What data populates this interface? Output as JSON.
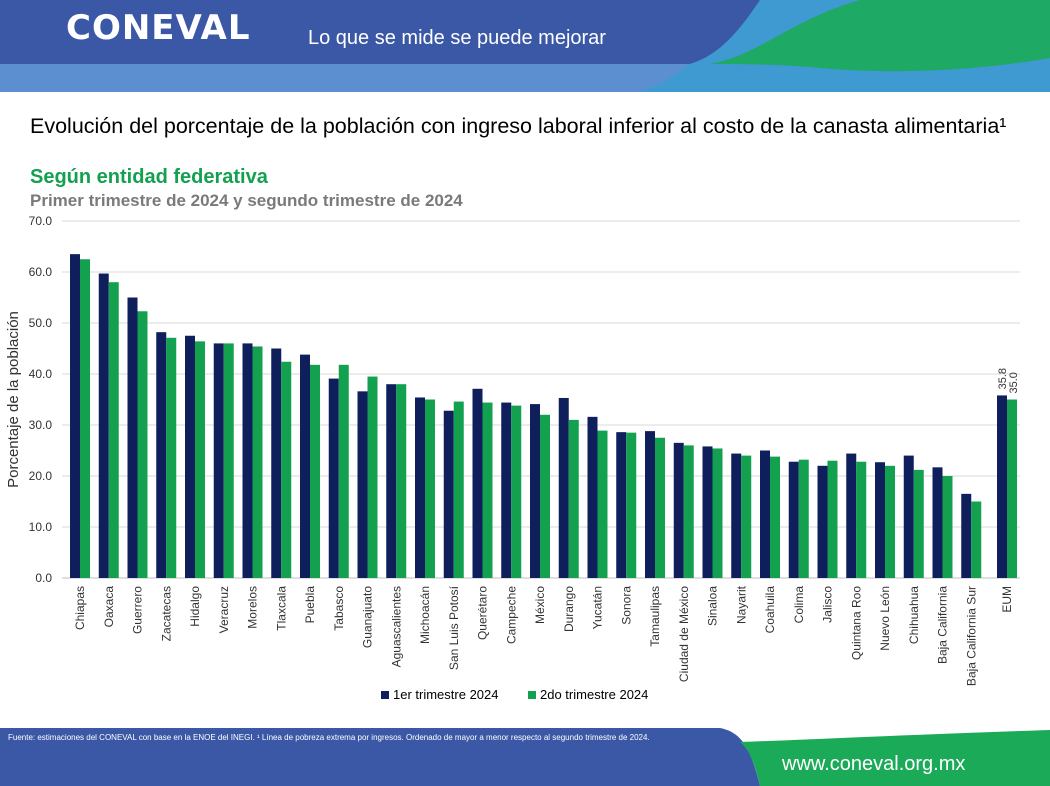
{
  "header": {
    "logo_text": "CONEVAL",
    "slogan": "Lo que se mide se puede mejorar"
  },
  "chart_data": {
    "type": "bar",
    "title": "Evolución del porcentaje de la población con ingreso laboral inferior al costo de la canasta alimentaria¹",
    "subtitle": "Según entidad federativa",
    "subsubtitle": "Primer trimestre de 2024 y segundo trimestre de 2024",
    "ylabel": "Porcentaje de la población",
    "ylim": [
      0,
      70
    ],
    "yticks": [
      "0.0",
      "10.0",
      "20.0",
      "30.0",
      "40.0",
      "50.0",
      "60.0",
      "70.0"
    ],
    "grid": true,
    "legend_position": "bottom",
    "categories": [
      "Chiapas",
      "Oaxaca",
      "Guerrero",
      "Zacatecas",
      "Hidalgo",
      "Veracruz",
      "Morelos",
      "Tlaxcala",
      "Puebla",
      "Tabasco",
      "Guanajuato",
      "Aguascalientes",
      "Michoacán",
      "San Luis Potosí",
      "Querétaro",
      "Campeche",
      "México",
      "Durango",
      "Yucatán",
      "Sonora",
      "Tamaulipas",
      "Ciudad de México",
      "Sinaloa",
      "Nayarit",
      "Coahuila",
      "Colima",
      "Jalisco",
      "Quintana Roo",
      "Nuevo León",
      "Chihuahua",
      "Baja California",
      "Baja California Sur",
      "EUM"
    ],
    "series": [
      {
        "name": "1er trimestre 2024",
        "color": "#0f1f5c",
        "values": [
          63.5,
          59.7,
          55.0,
          48.2,
          47.5,
          46.0,
          46.0,
          45.0,
          43.8,
          39.1,
          36.6,
          38.0,
          35.4,
          32.8,
          37.1,
          34.4,
          34.1,
          35.3,
          31.6,
          28.6,
          28.8,
          26.5,
          25.8,
          24.4,
          25.0,
          22.8,
          22.0,
          24.4,
          22.7,
          24.0,
          21.7,
          16.5,
          35.8
        ]
      },
      {
        "name": "2do trimestre 2024",
        "color": "#13a150",
        "values": [
          62.5,
          58.0,
          52.3,
          47.1,
          46.4,
          46.0,
          45.4,
          42.4,
          41.8,
          41.8,
          39.5,
          38.0,
          35.0,
          34.6,
          34.4,
          33.8,
          32.0,
          31.0,
          28.9,
          28.5,
          27.5,
          26.0,
          25.4,
          24.0,
          23.8,
          23.2,
          23.0,
          22.8,
          22.0,
          21.2,
          20.0,
          15.0,
          35.0
        ]
      }
    ],
    "data_labels": {
      "category": "EUM",
      "series1": "35.8",
      "series2": "35.0"
    }
  },
  "colors": {
    "header_blue": "#3a59a6",
    "header_light": "#5a8fcf",
    "accent_green": "#13a150",
    "bar_navy": "#0f1f5c",
    "gridline": "#d9d9d9"
  },
  "footer": {
    "note": "Fuente: estimaciones del CONEVAL con base en la ENOE del INEGI. ¹ Línea de pobreza extrema por ingresos. Ordenado de mayor a menor respecto al segundo trimestre de 2024.",
    "website": "www.coneval.org.mx"
  }
}
